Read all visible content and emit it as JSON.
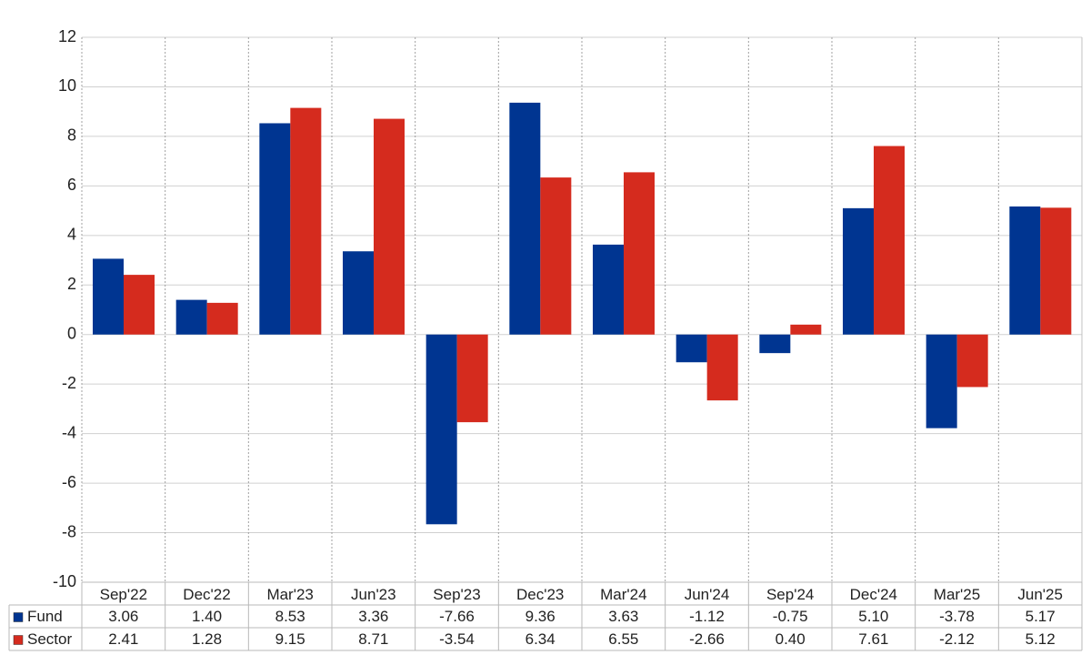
{
  "chart_data": {
    "type": "bar",
    "categories": [
      "Sep'22",
      "Dec'22",
      "Mar'23",
      "Jun'23",
      "Sep'23",
      "Dec'23",
      "Mar'24",
      "Jun'24",
      "Sep'24",
      "Dec'24",
      "Mar'25",
      "Jun'25"
    ],
    "series": [
      {
        "name": "Fund",
        "color": "#003591",
        "values": [
          3.06,
          1.4,
          8.53,
          3.36,
          -7.66,
          9.36,
          3.63,
          -1.12,
          -0.75,
          5.1,
          -3.78,
          5.17
        ],
        "value_labels": [
          "3.06",
          "1.40",
          "8.53",
          "3.36",
          "-7.66",
          "9.36",
          "3.63",
          "-1.12",
          "-0.75",
          "5.10",
          "-3.78",
          "5.17"
        ]
      },
      {
        "name": "Sector",
        "color": "#d52b1e",
        "values": [
          2.41,
          1.28,
          9.15,
          8.71,
          -3.54,
          6.34,
          6.55,
          -2.66,
          0.4,
          7.61,
          -2.12,
          5.12
        ],
        "value_labels": [
          "2.41",
          "1.28",
          "9.15",
          "8.71",
          "-3.54",
          "6.34",
          "6.55",
          "-2.66",
          "0.40",
          "7.61",
          "-2.12",
          "5.12"
        ]
      }
    ],
    "ylim": [
      -10,
      12
    ],
    "yticks": [
      -10,
      -8,
      -6,
      -4,
      -2,
      0,
      2,
      4,
      6,
      8,
      10,
      12
    ],
    "grid": true,
    "negative_label_color": "#e00000"
  }
}
